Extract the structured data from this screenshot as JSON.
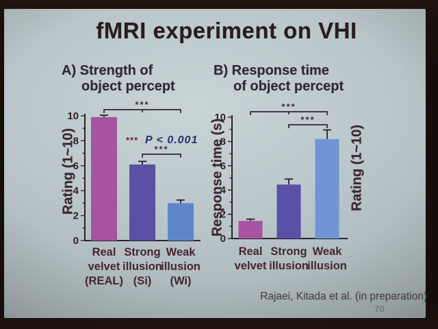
{
  "slide": {
    "title": "fMRI experiment on VHI",
    "panels": {
      "a": {
        "line1": "A) Strength of",
        "line2": "object percept"
      },
      "b": {
        "line1": "B) Response time",
        "line2": "of object percept"
      }
    },
    "attribution": "Rajaei, Kitada et al. (in preparation)",
    "page_number": "70"
  },
  "colors": {
    "real_bar": "#a653a0",
    "strong_bar": "#5a50a5",
    "weak_bar_a": "#5f86cb",
    "weak_bar_b": "#7094d4",
    "annotation_blue": "#25336b",
    "slide_background": "#b5c1c4",
    "photo_border": "#190f0b"
  },
  "chart_data": [
    {
      "type": "bar",
      "panel": "A",
      "title": "Strength of object percept",
      "categories": [
        [
          "Real",
          "velvet",
          "(REAL)"
        ],
        [
          "Strong",
          "illusion",
          "(Si)"
        ],
        [
          "Weak",
          "illusion",
          "(Wi)"
        ]
      ],
      "values": [
        9.9,
        6.1,
        3.0
      ],
      "errors": [
        0.15,
        0.25,
        0.25
      ],
      "bar_colors": [
        "#a653a0",
        "#5a50a5",
        "#5f86cb"
      ],
      "ylabel": "Rating (1~10)",
      "xlabel": "",
      "ylim": [
        0,
        10
      ],
      "yticks": [
        0,
        2,
        4,
        6,
        8,
        10
      ],
      "grid": "off",
      "significance": [
        {
          "pair": [
            0,
            2
          ],
          "label": "***"
        },
        {
          "pair": [
            1,
            2
          ],
          "label": "***"
        }
      ],
      "annotation": {
        "stars": "***",
        "text": "P < 0.001"
      }
    },
    {
      "type": "bar",
      "panel": "B",
      "title": "Response time of object percept",
      "categories": [
        [
          "Real",
          "velvet"
        ],
        [
          "Strong",
          "illusion"
        ],
        [
          "Weak",
          "illusion"
        ]
      ],
      "values": [
        1.45,
        4.45,
        8.2
      ],
      "errors": [
        0.15,
        0.45,
        0.75
      ],
      "bar_colors": [
        "#a653a0",
        "#5a50a5",
        "#7094d4"
      ],
      "ylabel": "Response time (s)",
      "ylabel_right": "Rating (1~10)",
      "xlabel": "",
      "ylim": [
        0,
        10
      ],
      "yticks": [
        0,
        2,
        4,
        6,
        8,
        10
      ],
      "grid": "off",
      "significance": [
        {
          "pair": [
            0,
            2
          ],
          "label": "***"
        },
        {
          "pair": [
            1,
            2
          ],
          "label": "***"
        }
      ]
    }
  ]
}
